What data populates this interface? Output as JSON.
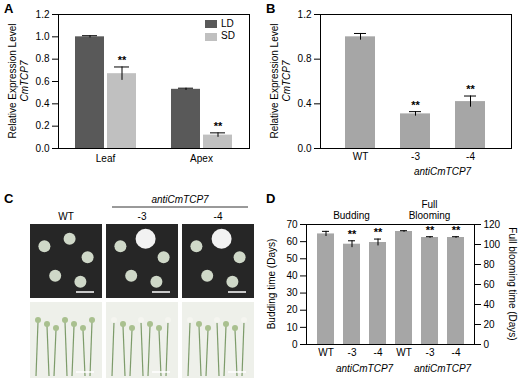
{
  "chart_data": [
    {
      "panel": "A",
      "type": "bar",
      "categories": [
        "Leaf",
        "Apex"
      ],
      "series": [
        {
          "name": "LD",
          "color": "#595959",
          "values": [
            1.0,
            0.53
          ],
          "errors": [
            0.01,
            0.01
          ]
        },
        {
          "name": "SD",
          "color": "#c0c0c0",
          "values": [
            0.67,
            0.12
          ],
          "errors": [
            0.06,
            0.02
          ]
        }
      ],
      "ylabel": [
        "Relative Expression Level",
        "CmTCP7"
      ],
      "ylim": [
        0,
        1.2
      ],
      "yticks": [
        {
          "value": 0,
          "label": "0.0"
        },
        0.2,
        0.4,
        0.6,
        0.8,
        {
          "value": 1,
          "label": "1.0"
        },
        1.2
      ],
      "legend": "top-right",
      "annotations": [
        {
          "category": "Leaf",
          "series": "SD",
          "text": "**"
        },
        {
          "category": "Apex",
          "series": "SD",
          "text": "**"
        }
      ]
    },
    {
      "panel": "B",
      "type": "bar",
      "categories": [
        "WT",
        "-3",
        "-4"
      ],
      "values": [
        1.0,
        0.31,
        0.42
      ],
      "errors": [
        0.03,
        0.02,
        0.05
      ],
      "color": "#a6a6a6",
      "group": {
        "text": "antiCmTCP7",
        "categories": [
          "-3",
          "-4"
        ]
      },
      "ylabel": [
        "Relative Expression Level",
        "CmTCP7"
      ],
      "ylim": [
        0,
        1.2
      ],
      "yticks": [
        {
          "value": 0,
          "label": "0.0"
        },
        0.4,
        0.8,
        1.2
      ],
      "annotations": [
        {
          "category": "-3",
          "text": "**"
        },
        {
          "category": "-4",
          "text": "**"
        }
      ]
    },
    {
      "panel": "D",
      "type": "bar",
      "categories": [
        "WT",
        "-3",
        "-4"
      ],
      "group": {
        "text": "antiCmTCP7",
        "categories": [
          "-3",
          "-4"
        ]
      },
      "series": [
        {
          "name": "Budding",
          "color": "#a6a6a6",
          "values": [
            64.5,
            58.5,
            59.5
          ],
          "errors": [
            1.5,
            2,
            2
          ],
          "annotations": [
            {
              "category": "-3",
              "text": "**"
            },
            {
              "category": "-4",
              "text": "**"
            }
          ]
        },
        {
          "name": "Full Blooming",
          "axis": "y2",
          "color": "#a6a6a6",
          "values": [
            113,
            107,
            107
          ],
          "errors": [
            0.8,
            0.8,
            0.8
          ],
          "annotations": [
            {
              "category": "-3",
              "text": "**"
            },
            {
              "category": "-4",
              "text": "**"
            }
          ]
        }
      ],
      "ylabel": "Budding time (Days)",
      "y2label": "Full blooming time (Days)",
      "ylim": [
        0,
        70
      ],
      "yticks": [
        0,
        10,
        20,
        30,
        40,
        50,
        60,
        70
      ],
      "y2lim": [
        0,
        120
      ],
      "y2ticks": [
        0,
        20,
        40,
        60,
        80,
        100,
        120
      ]
    }
  ],
  "panel_c": {
    "panel": "C",
    "group": "antiCmTCP7",
    "columns": [
      "WT",
      "-3",
      "-4"
    ]
  }
}
